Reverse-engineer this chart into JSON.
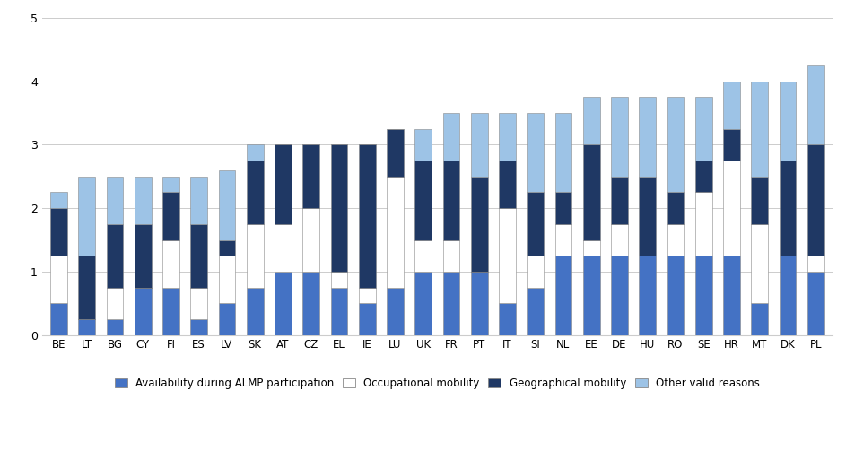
{
  "categories": [
    "BE",
    "LT",
    "BG",
    "CY",
    "FI",
    "ES",
    "LV",
    "SK",
    "AT",
    "CZ",
    "EL",
    "IE",
    "LU",
    "UK",
    "FR",
    "PT",
    "IT",
    "SI",
    "NL",
    "EE",
    "DE",
    "HU",
    "RO",
    "SE",
    "HR",
    "MT",
    "DK",
    "PL"
  ],
  "availability": [
    0.5,
    0.25,
    0.25,
    0.75,
    0.75,
    0.25,
    0.5,
    0.75,
    1.0,
    1.0,
    0.75,
    0.5,
    0.75,
    1.0,
    1.0,
    1.0,
    0.5,
    0.75,
    1.25,
    1.25,
    1.25,
    1.25,
    1.25,
    1.25,
    1.25,
    0.5,
    1.25,
    1.0
  ],
  "occupational": [
    0.75,
    0.0,
    0.5,
    0.0,
    0.75,
    0.5,
    0.75,
    1.0,
    0.75,
    1.0,
    0.25,
    0.25,
    1.75,
    0.5,
    0.5,
    0.0,
    1.5,
    0.5,
    0.5,
    0.25,
    0.5,
    0.0,
    0.5,
    1.0,
    1.5,
    1.25,
    0.0,
    0.25
  ],
  "geographical": [
    0.75,
    1.0,
    1.0,
    1.0,
    0.75,
    1.0,
    0.25,
    1.0,
    1.25,
    1.0,
    2.0,
    2.25,
    0.75,
    1.25,
    1.25,
    1.5,
    0.75,
    1.0,
    0.5,
    1.5,
    0.75,
    1.25,
    0.5,
    0.5,
    0.5,
    0.75,
    1.5,
    1.75
  ],
  "other": [
    0.25,
    1.25,
    0.75,
    0.75,
    0.25,
    0.75,
    1.1,
    0.25,
    0.0,
    0.0,
    0.0,
    0.0,
    0.0,
    0.5,
    0.75,
    1.0,
    0.75,
    1.25,
    1.25,
    0.75,
    1.25,
    1.25,
    1.5,
    1.0,
    0.75,
    1.5,
    1.25,
    1.25
  ],
  "color_availability": "#4472c4",
  "color_occupational": "#ffffff",
  "color_geographical": "#1f3864",
  "color_other": "#9dc3e6",
  "legend_labels": [
    "Availability during ALMP participation",
    "Occupational mobility",
    "Geographical mobility",
    "Other valid reasons"
  ],
  "ylim": [
    0,
    5
  ],
  "yticks": [
    0,
    1,
    2,
    3,
    4,
    5
  ],
  "background_color": "#ffffff"
}
